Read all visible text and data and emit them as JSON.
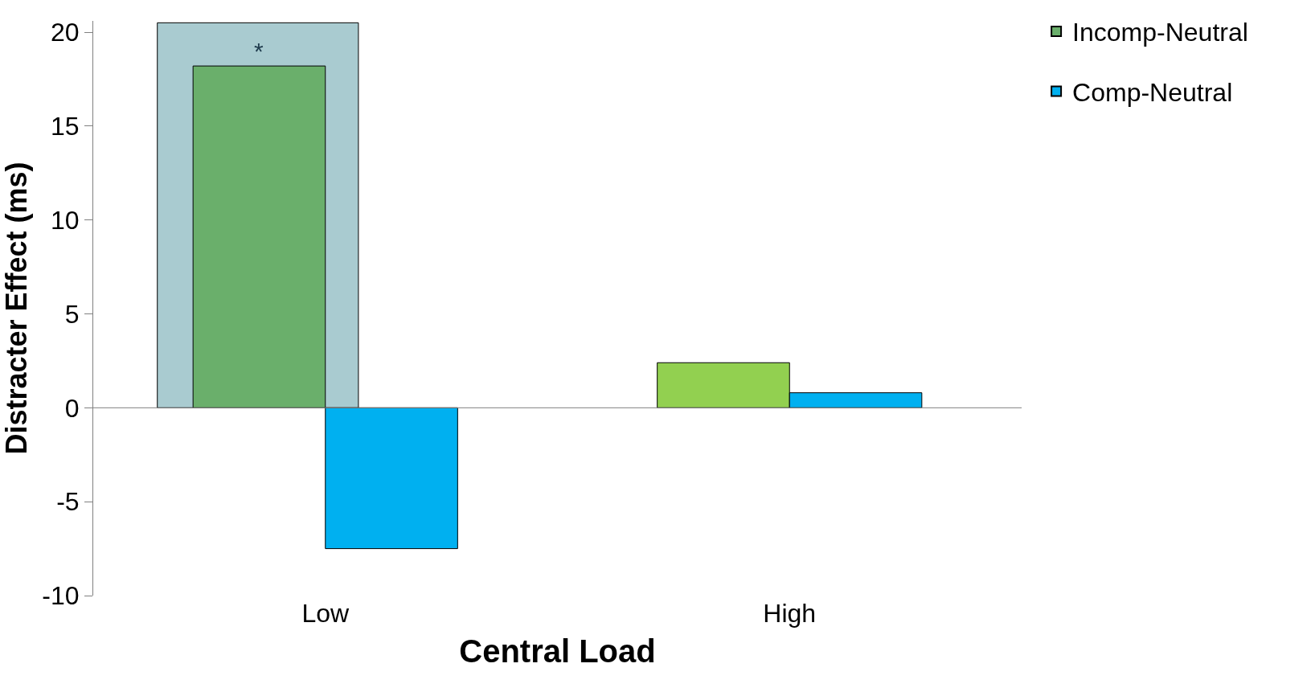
{
  "chart_data": {
    "type": "bar",
    "xlabel": "Central Load",
    "ylabel": "Distracter Effect (ms)",
    "categories": [
      "Low",
      "High"
    ],
    "series": [
      {
        "name": "Incomp-Neutral",
        "color": "#92d050",
        "colors": [
          "#6aaf6b",
          "#92d050"
        ],
        "values": [
          18.2,
          2.4
        ]
      },
      {
        "name": "Comp-Neutral",
        "color": "#00b0f0",
        "values": [
          -7.5,
          0.8
        ]
      }
    ],
    "ylim": [
      -10,
      20.6
    ],
    "yticks": [
      -10,
      -5,
      0,
      5,
      10,
      15,
      20
    ],
    "bands": [
      {
        "axis": "y",
        "from": 0,
        "to": 20.5,
        "color": "#a9cbd0"
      }
    ],
    "annotations": [
      {
        "text": "*",
        "x": "Low",
        "y": 18.2
      }
    ],
    "ref_lines": [
      {
        "axis": "y",
        "value": 0,
        "color": "#808080"
      }
    ],
    "grid": false,
    "legend": "top right"
  }
}
